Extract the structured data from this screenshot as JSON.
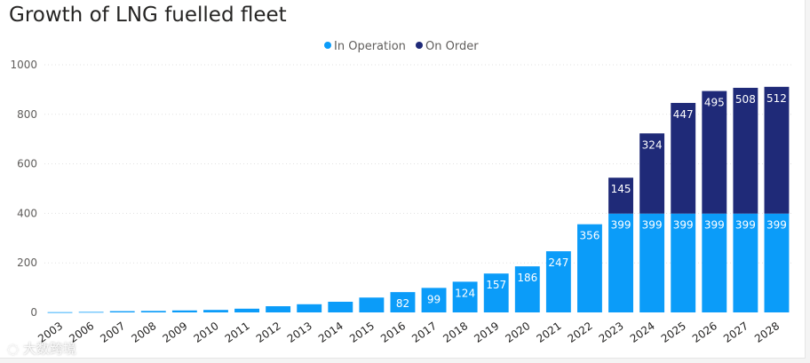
{
  "chart_data": {
    "type": "bar",
    "stacked": true,
    "title": "Growth of LNG fuelled fleet",
    "categories": [
      "2003",
      "2006",
      "2007",
      "2008",
      "2009",
      "2010",
      "2011",
      "2012",
      "2013",
      "2014",
      "2015",
      "2016",
      "2017",
      "2018",
      "2019",
      "2020",
      "2021",
      "2022",
      "2023",
      "2024",
      "2025",
      "2026",
      "2027",
      "2028"
    ],
    "series": [
      {
        "name": "In Operation",
        "color": "#118dff",
        "values": [
          1,
          2,
          5,
          6,
          8,
          10,
          15,
          25,
          33,
          43,
          60,
          82,
          99,
          124,
          157,
          186,
          247,
          356,
          399,
          399,
          399,
          399,
          399,
          399
        ]
      },
      {
        "name": "On Order",
        "color": "#12239e",
        "values": [
          0,
          0,
          0,
          0,
          0,
          0,
          0,
          0,
          0,
          0,
          0,
          0,
          0,
          0,
          0,
          0,
          0,
          0,
          145,
          324,
          447,
          495,
          508,
          512
        ]
      }
    ],
    "data_labels": {
      "In Operation": [
        null,
        null,
        null,
        null,
        null,
        null,
        null,
        null,
        null,
        null,
        null,
        "82",
        "99",
        "124",
        "157",
        "186",
        "247",
        "356",
        "399",
        "399",
        "399",
        "399",
        "399",
        "399"
      ],
      "On Order": [
        null,
        null,
        null,
        null,
        null,
        null,
        null,
        null,
        null,
        null,
        null,
        null,
        null,
        null,
        null,
        null,
        null,
        null,
        "145",
        "324",
        "447",
        "495",
        "508",
        "512"
      ]
    },
    "yticks": [
      "0",
      "200",
      "400",
      "600",
      "800",
      "1000"
    ],
    "ylim": [
      0,
      1000
    ],
    "xlabel": "",
    "ylabel": "",
    "grid": true,
    "legend_position": "top-center"
  },
  "colors": {
    "in_operation": "#0b9cf9",
    "on_order": "#1f2a78",
    "grid": "#e1e1e1"
  },
  "watermark": "大数跨境"
}
